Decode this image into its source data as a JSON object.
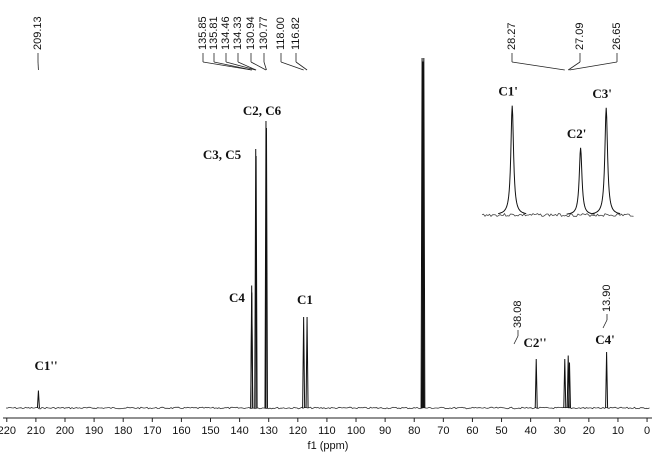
{
  "chart_data": {
    "type": "spectrum",
    "xlabel": "f1 (ppm)",
    "xlim": [
      221.3,
      -1.7
    ],
    "xticks": [
      220,
      210,
      200,
      190,
      180,
      170,
      160,
      150,
      140,
      130,
      120,
      110,
      100,
      90,
      80,
      70,
      60,
      50,
      40,
      30,
      20,
      10,
      0
    ],
    "ylim": [
      0,
      100
    ],
    "color": "#111111",
    "peaks": [
      {
        "shift": 209.13,
        "label": "209.13",
        "height": 5
      },
      {
        "shift": 135.85,
        "label": "135.85",
        "height": 35
      },
      {
        "shift": 135.81,
        "label": "135.81",
        "height": 33
      },
      {
        "shift": 134.46,
        "label": "134.46",
        "height": 74
      },
      {
        "shift": 134.33,
        "label": "134.33",
        "height": 72
      },
      {
        "shift": 130.94,
        "label": "130.94",
        "height": 82
      },
      {
        "shift": 130.77,
        "label": "130.77",
        "height": 80
      },
      {
        "shift": 118,
        "label": "118.00",
        "height": 26
      },
      {
        "shift": 116.82,
        "label": "116.82",
        "height": 26
      },
      {
        "shift": 77.3,
        "height": 100
      },
      {
        "shift": 77.0,
        "height": 99
      },
      {
        "shift": 76.7,
        "height": 100
      },
      {
        "shift": 38.08,
        "label": "38.08",
        "height": 14
      },
      {
        "shift": 28.27,
        "label": "28.27",
        "height": 14
      },
      {
        "shift": 27.09,
        "label": "27.09",
        "height": 15
      },
      {
        "shift": 26.65,
        "label": "26.65",
        "height": 13
      },
      {
        "shift": 13.9,
        "label": "13.90",
        "height": 16
      }
    ],
    "assignments": [
      "C1''",
      "C4",
      "C3, C5",
      "C2, C6",
      "C1",
      "C2''",
      "C4'"
    ],
    "inset": {
      "xlim": [
        28.79,
        26.17
      ],
      "ylim": [
        0,
        120
      ],
      "peaks": [
        {
          "label": "C1'",
          "shift": 28.27,
          "height": 101
        },
        {
          "label": "C2'",
          "shift": 27.09,
          "height": 62
        },
        {
          "label": "C3'",
          "shift": 26.65,
          "height": 99
        }
      ]
    }
  }
}
